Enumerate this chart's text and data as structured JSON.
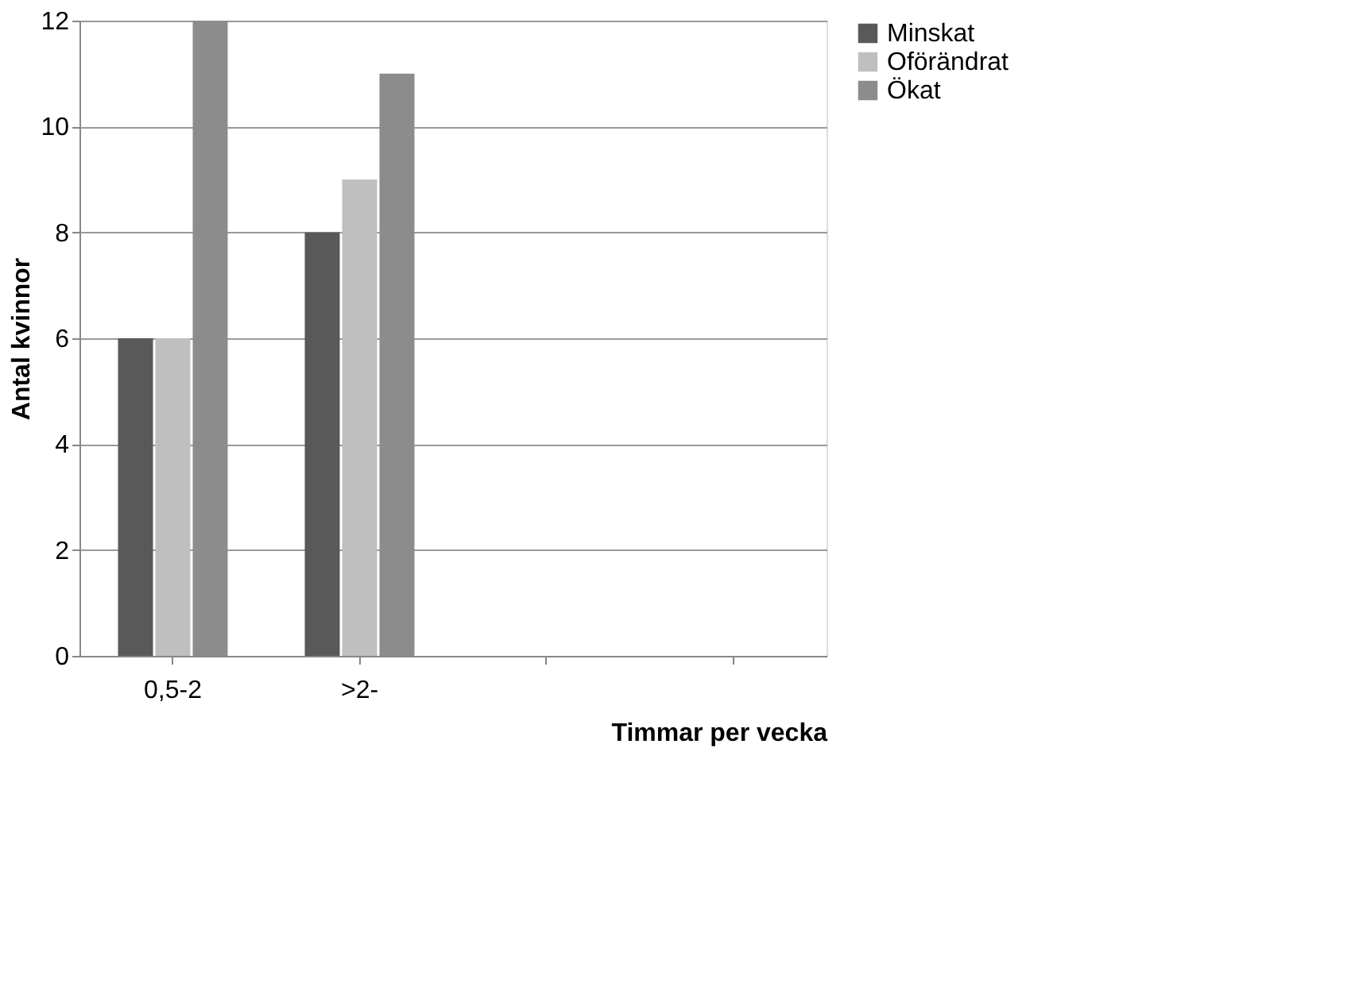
{
  "chart_data": {
    "type": "bar",
    "xlabel": "Timmar per vecka",
    "ylabel": "Antal kvinnor",
    "categories": [
      "0,5-2",
      ">2-",
      null,
      null
    ],
    "series": [
      {
        "name": "Minskat",
        "color": "#595959",
        "values": [
          6,
          8,
          null,
          null
        ]
      },
      {
        "name": "Oförändrat",
        "color": "#bfbfbf",
        "values": [
          6,
          9,
          null,
          null
        ]
      },
      {
        "name": "Ökat",
        "color": "#8c8c8c",
        "values": [
          12,
          11,
          null,
          null
        ]
      }
    ],
    "ylim": [
      0,
      12
    ],
    "yticks": [
      0,
      2,
      4,
      6,
      8,
      10,
      12
    ],
    "grid": "y",
    "legend": "right"
  }
}
